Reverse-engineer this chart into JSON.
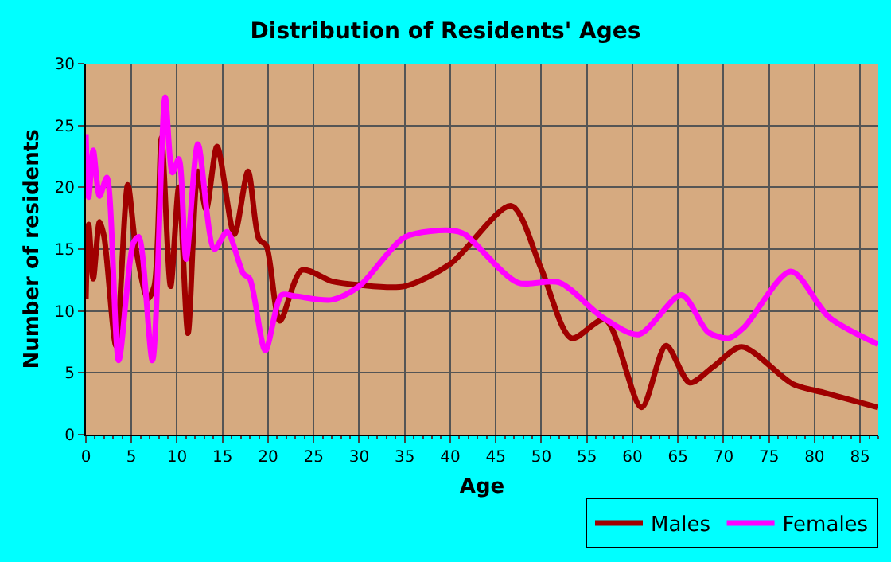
{
  "chart_data": {
    "type": "line",
    "title": "Distribution of Residents' Ages",
    "xlabel": "Age",
    "ylabel": "Number of residents",
    "xlim": [
      0,
      87
    ],
    "ylim": [
      0,
      30
    ],
    "xticks": [
      0,
      5,
      10,
      15,
      20,
      25,
      30,
      35,
      40,
      45,
      50,
      55,
      60,
      65,
      70,
      75,
      80,
      85
    ],
    "yticks": [
      0,
      5,
      10,
      15,
      20,
      25,
      30
    ],
    "grid": true,
    "legend": "bottom right",
    "marker": "none",
    "line_style": "solid",
    "series": [
      {
        "name": "Males",
        "color": "#a00000",
        "x": [
          0,
          0.3,
          0.8,
          1.5,
          2,
          3.3,
          4.6,
          5.5,
          6.8,
          7.5,
          8.3,
          9.3,
          10.2,
          11.2,
          12.3,
          13.2,
          14.4,
          16.3,
          17.8,
          19,
          19.8,
          21.3,
          23.7,
          27,
          30,
          35,
          40,
          46.7,
          50,
          53.3,
          57,
          61,
          63.7,
          66.3,
          68.9,
          72,
          77.6,
          81,
          87
        ],
        "values": [
          11,
          17,
          12.6,
          17.2,
          16,
          7.2,
          20.2,
          15,
          11,
          12,
          24,
          12,
          20,
          8.2,
          21.3,
          18.2,
          23.3,
          16.2,
          21.3,
          15.8,
          15.3,
          9.2,
          13.3,
          12.4,
          12.1,
          12.0,
          13.8,
          18.5,
          13.4,
          7.8,
          9.3,
          2.2,
          7.2,
          4.2,
          5.5,
          7.1,
          4.1,
          3.4,
          2.2
        ]
      },
      {
        "name": "Females",
        "color": "#ff00ff",
        "x": [
          0,
          0.3,
          0.8,
          1.5,
          2.3,
          3.6,
          5.2,
          5.8,
          7.3,
          8.7,
          9.5,
          10.2,
          11,
          12.3,
          14.1,
          15.5,
          17.3,
          18,
          19.7,
          21.5,
          23,
          27,
          30,
          35.1,
          40.3,
          41.6,
          47.4,
          52,
          56.7,
          60.7,
          65.4,
          68.3,
          70.6,
          72.3,
          77.4,
          81.6,
          87
        ],
        "values": [
          24.3,
          19.2,
          23,
          19.3,
          20.8,
          6,
          15.5,
          16,
          6,
          27.3,
          21.2,
          22.3,
          14.2,
          23.5,
          15,
          16.4,
          13,
          12.6,
          6.8,
          11.3,
          11.2,
          10.9,
          12,
          16,
          16.5,
          16.2,
          12.3,
          12.3,
          9.5,
          8.1,
          11.3,
          8.3,
          7.8,
          8.7,
          13.2,
          9.5,
          7.3
        ]
      }
    ]
  }
}
